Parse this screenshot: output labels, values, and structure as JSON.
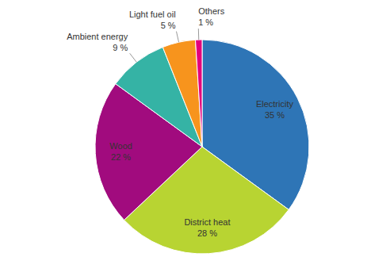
{
  "chart_data": {
    "type": "pie",
    "categories": [
      "Electricity",
      "District heat",
      "Wood",
      "Ambient energy",
      "Light fuel oil",
      "Others"
    ],
    "values": [
      35,
      28,
      22,
      9,
      5,
      1
    ],
    "value_labels": [
      "35 %",
      "28 %",
      "22 %",
      "9 %",
      "5 %",
      "1 %"
    ],
    "colors": [
      "#2E75B6",
      "#B8D432",
      "#A10B7E",
      "#35B3A5",
      "#F7941D",
      "#E4007C"
    ],
    "data_labels": true
  }
}
